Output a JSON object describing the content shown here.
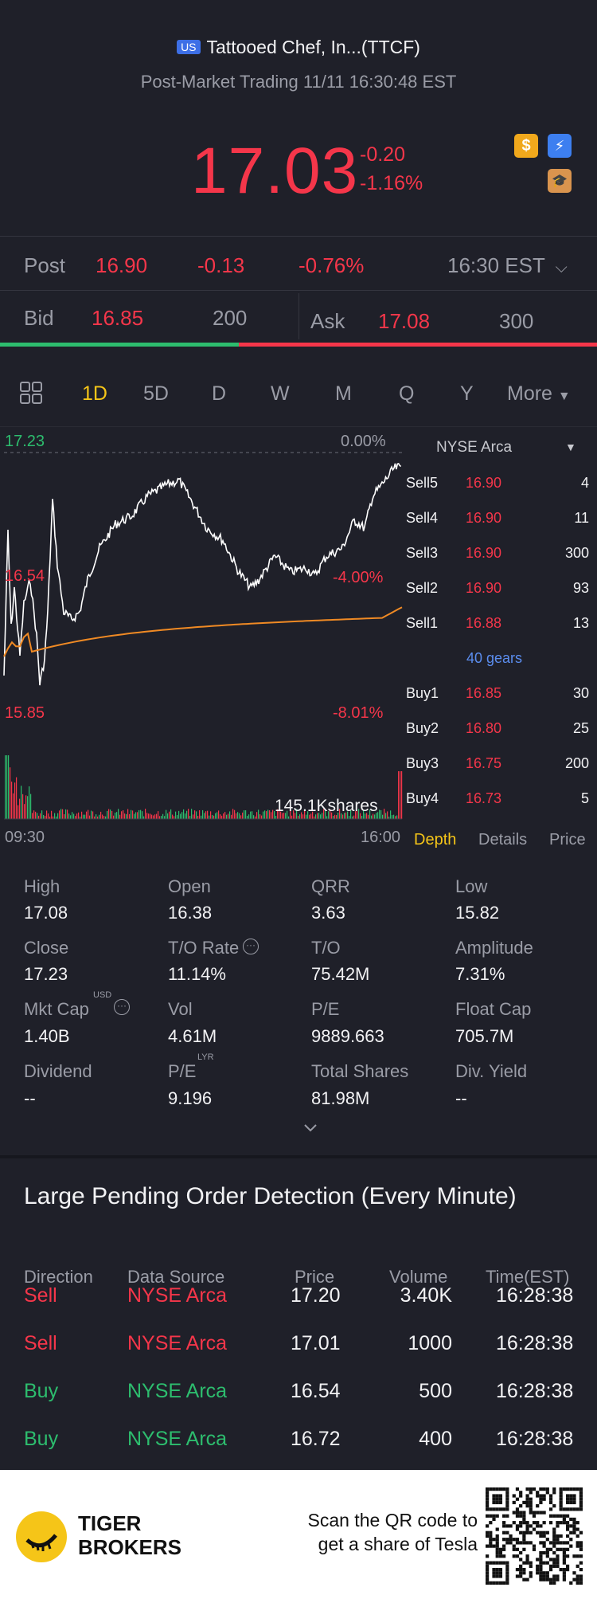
{
  "header": {
    "market_badge": "US",
    "title": "Tattooed Chef, In...(TTCF)",
    "subtitle": "Post-Market Trading 11/11 16:30:48 EST",
    "price": "17.03",
    "change": "-0.20",
    "change_pct": "-1.16%",
    "icons": [
      "dollar-icon",
      "lightning-icon",
      "graduation-icon"
    ]
  },
  "post_row": {
    "label": "Post",
    "price": "16.90",
    "change": "-0.13",
    "change_pct": "-0.76%",
    "time": "16:30 EST"
  },
  "bid_ask": {
    "bid_label": "Bid",
    "bid_price": "16.85",
    "bid_size": "200",
    "ask_label": "Ask",
    "ask_price": "17.08",
    "ask_size": "300",
    "bid_fraction": 0.4
  },
  "tabs": {
    "items": [
      "1D",
      "5D",
      "D",
      "W",
      "M",
      "Q",
      "Y"
    ],
    "active": "1D",
    "more": "More"
  },
  "chart": {
    "high_label": "17.23",
    "high_pct": "0.00%",
    "mid_label": "16.54",
    "mid_pct": "-4.00%",
    "low_label": "15.85",
    "low_pct": "-8.01%",
    "volume_label": "145.1Kshares",
    "start_time": "09:30",
    "end_time": "16:00",
    "colors": {
      "price": "#ffffff",
      "avg": "#f08a24",
      "up": "#2dbd6e",
      "down": "#f5364a"
    }
  },
  "depth": {
    "exchange": "NYSE Arca",
    "sells": [
      {
        "label": "Sell5",
        "price": "16.90",
        "vol": "4"
      },
      {
        "label": "Sell4",
        "price": "16.90",
        "vol": "11"
      },
      {
        "label": "Sell3",
        "price": "16.90",
        "vol": "300"
      },
      {
        "label": "Sell2",
        "price": "16.90",
        "vol": "93"
      },
      {
        "label": "Sell1",
        "price": "16.88",
        "vol": "13"
      }
    ],
    "gears": "40 gears",
    "buys": [
      {
        "label": "Buy1",
        "price": "16.85",
        "vol": "30"
      },
      {
        "label": "Buy2",
        "price": "16.80",
        "vol": "25"
      },
      {
        "label": "Buy3",
        "price": "16.75",
        "vol": "200"
      },
      {
        "label": "Buy4",
        "price": "16.73",
        "vol": "5"
      }
    ],
    "tabs": [
      "Depth",
      "Details",
      "Price"
    ]
  },
  "stats": [
    {
      "label": "High",
      "value": "17.08"
    },
    {
      "label": "Open",
      "value": "16.38"
    },
    {
      "label": "QRR",
      "value": "3.63"
    },
    {
      "label": "Low",
      "value": "15.82"
    },
    {
      "label": "Close",
      "value": "17.23"
    },
    {
      "label": "T/O Rate",
      "value": "11.14%"
    },
    {
      "label": "T/O",
      "value": "75.42M"
    },
    {
      "label": "Amplitude",
      "value": "7.31%"
    },
    {
      "label": "Mkt Cap",
      "value": "1.40B",
      "sup": "USD"
    },
    {
      "label": "Vol",
      "value": "4.61M"
    },
    {
      "label": "P/E",
      "value": "9889.663"
    },
    {
      "label": "Float Cap",
      "value": "705.7M"
    },
    {
      "label": "Dividend",
      "value": "--"
    },
    {
      "label": "P/E",
      "value": "9.196",
      "sup": "LYR"
    },
    {
      "label": "Total Shares",
      "value": "81.98M"
    },
    {
      "label": "Div. Yield",
      "value": "--"
    }
  ],
  "large_orders": {
    "title": "Large Pending Order Detection (Every Minute)",
    "columns": [
      "Direction",
      "Data Source",
      "Price",
      "Volume",
      "Time(EST)"
    ],
    "rows": [
      {
        "direction": "Sell",
        "source": "NYSE Arca",
        "price": "17.20",
        "volume": "3.40K",
        "time": "16:28:38"
      },
      {
        "direction": "Sell",
        "source": "NYSE Arca",
        "price": "17.01",
        "volume": "1000",
        "time": "16:28:38"
      },
      {
        "direction": "Buy",
        "source": "NYSE Arca",
        "price": "16.54",
        "volume": "500",
        "time": "16:28:38"
      },
      {
        "direction": "Buy",
        "source": "NYSE Arca",
        "price": "16.72",
        "volume": "400",
        "time": "16:28:38"
      }
    ]
  },
  "footer": {
    "brand_line1": "TIGER",
    "brand_line2": "BROKERS",
    "promo_line1": "Scan the QR code to",
    "promo_line2": "get a share of Tesla"
  }
}
